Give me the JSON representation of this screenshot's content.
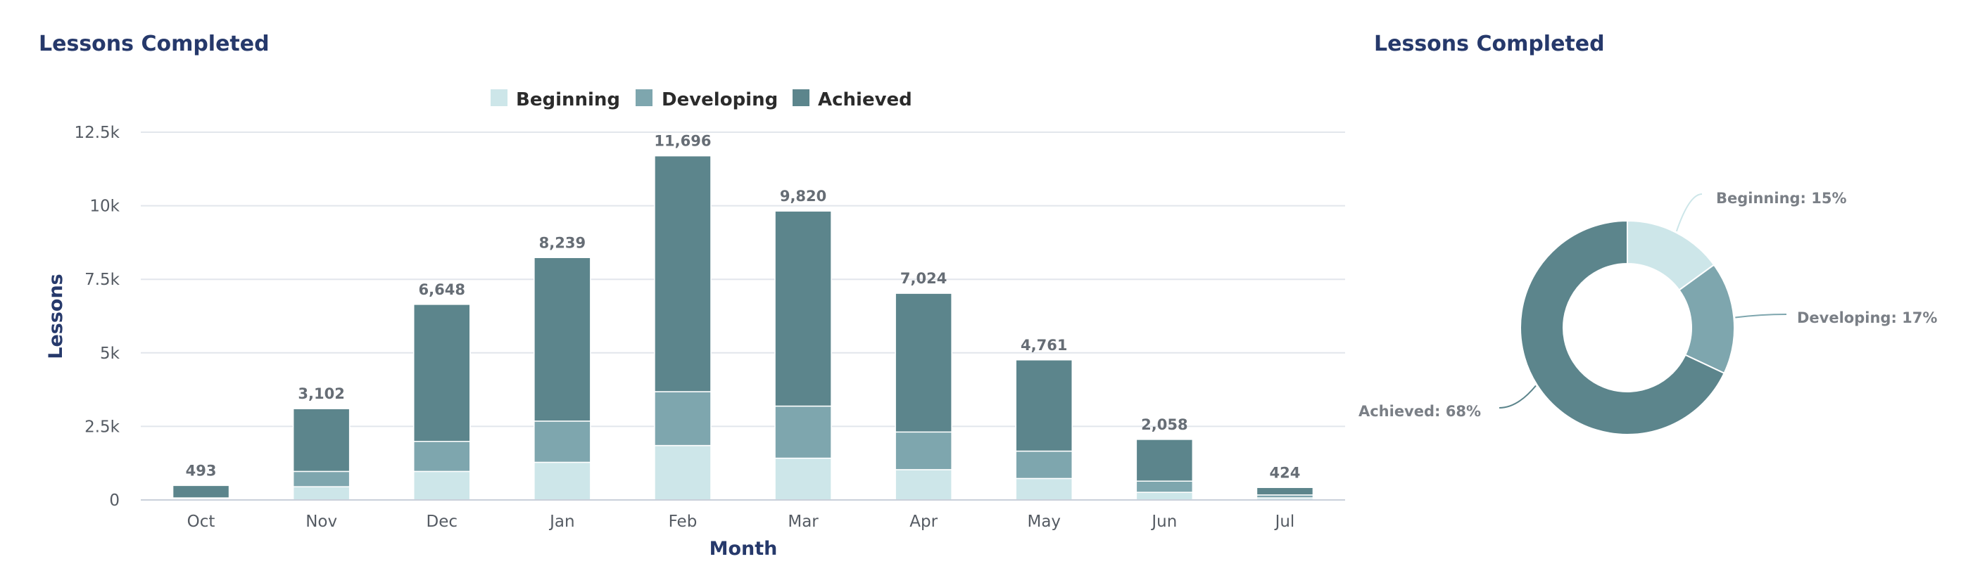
{
  "chart_data": [
    {
      "type": "bar",
      "stacked": true,
      "title": "Lessons Completed",
      "xlabel": "Month",
      "ylabel": "Lessons",
      "ylim": [
        0,
        12500
      ],
      "y_ticks": [
        0,
        2500,
        5000,
        7500,
        10000,
        12500
      ],
      "y_tick_labels": [
        "0",
        "2.5k",
        "5k",
        "7.5k",
        "10k",
        "12.5k"
      ],
      "grid": true,
      "legend_position": "top",
      "categories": [
        "Oct",
        "Nov",
        "Dec",
        "Jan",
        "Feb",
        "Mar",
        "Apr",
        "May",
        "Jun",
        "Jul"
      ],
      "series": [
        {
          "name": "Beginning",
          "color": "#cde6e9",
          "values": [
            30,
            450,
            970,
            1280,
            1850,
            1420,
            1030,
            730,
            260,
            70
          ]
        },
        {
          "name": "Developing",
          "color": "#7ea6ae",
          "values": [
            40,
            520,
            1020,
            1400,
            1830,
            1770,
            1280,
            930,
            380,
            100
          ]
        },
        {
          "name": "Achieved",
          "color": "#5c858c",
          "values": [
            423,
            2132,
            4658,
            5559,
            8016,
            6630,
            4714,
            3101,
            1418,
            254
          ]
        }
      ],
      "totals": [
        493,
        3102,
        6648,
        8239,
        11696,
        9820,
        7024,
        4761,
        2058,
        424
      ],
      "total_labels": [
        "493",
        "3,102",
        "6,648",
        "8,239",
        "11,696",
        "9,820",
        "7,024",
        "4,761",
        "2,058",
        "424"
      ]
    },
    {
      "type": "pie",
      "donut": true,
      "title": "Lessons Completed",
      "slices": [
        {
          "name": "Beginning",
          "value": 15,
          "label": "Beginning: 15%",
          "color": "#cde6e9"
        },
        {
          "name": "Developing",
          "value": 17,
          "label": "Developing: 17%",
          "color": "#7ea6ae"
        },
        {
          "name": "Achieved",
          "value": 68,
          "label": "Achieved: 68%",
          "color": "#5c858c"
        }
      ]
    }
  ]
}
